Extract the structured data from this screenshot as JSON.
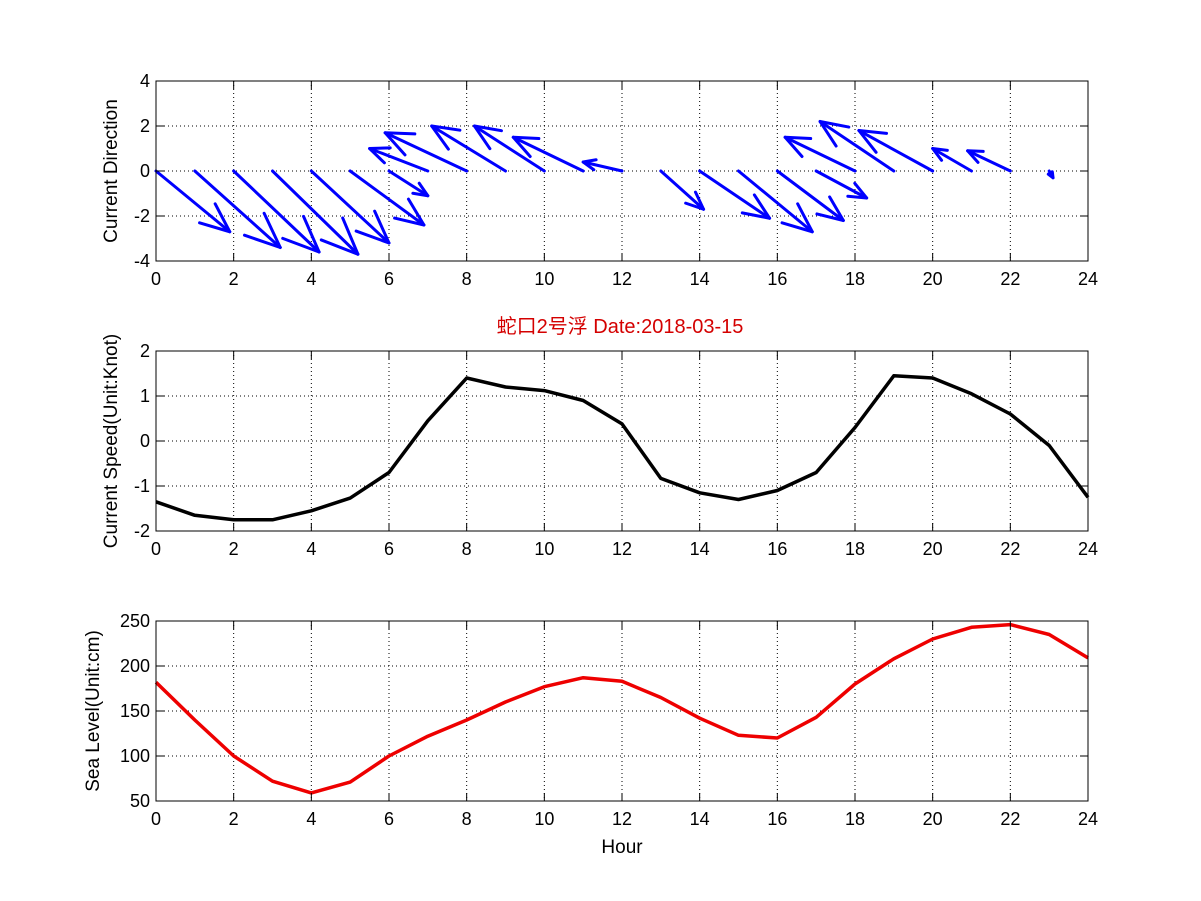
{
  "figure": {
    "title": "蛇口2号浮   Date:2018-03-15",
    "title_color": "#d40000"
  },
  "chart_data": [
    {
      "type": "quiver",
      "ylabel": "Current Direction",
      "xlabel": "",
      "xlim": [
        0,
        24
      ],
      "ylim": [
        -4,
        4
      ],
      "xticks": [
        0,
        2,
        4,
        6,
        8,
        10,
        12,
        14,
        16,
        18,
        20,
        22,
        24
      ],
      "yticks": [
        4,
        2,
        0,
        -2,
        -4
      ],
      "grid": true,
      "color": "#0000ff",
      "arrows": [
        {
          "x": 0,
          "u": 1.9,
          "v": -2.7
        },
        {
          "x": 1,
          "u": 2.2,
          "v": -3.4
        },
        {
          "x": 2,
          "u": 2.2,
          "v": -3.6
        },
        {
          "x": 3,
          "u": 2.2,
          "v": -3.7
        },
        {
          "x": 4,
          "u": 2.0,
          "v": -3.2
        },
        {
          "x": 5,
          "u": 1.9,
          "v": -2.4
        },
        {
          "x": 6,
          "u": 1.0,
          "v": -1.1
        },
        {
          "x": 7,
          "u": -1.5,
          "v": 1.0
        },
        {
          "x": 8,
          "u": -2.1,
          "v": 1.7
        },
        {
          "x": 9,
          "u": -1.9,
          "v": 2.0
        },
        {
          "x": 10,
          "u": -1.8,
          "v": 2.0
        },
        {
          "x": 11,
          "u": -1.8,
          "v": 1.5
        },
        {
          "x": 12,
          "u": -1.0,
          "v": 0.4
        },
        {
          "x": 13,
          "u": 1.1,
          "v": -1.7
        },
        {
          "x": 14,
          "u": 1.8,
          "v": -2.1
        },
        {
          "x": 15,
          "u": 1.9,
          "v": -2.7
        },
        {
          "x": 16,
          "u": 1.7,
          "v": -2.2
        },
        {
          "x": 17,
          "u": 1.3,
          "v": -1.2
        },
        {
          "x": 18,
          "u": -1.8,
          "v": 1.5
        },
        {
          "x": 19,
          "u": -1.9,
          "v": 2.2
        },
        {
          "x": 20,
          "u": -1.9,
          "v": 1.8
        },
        {
          "x": 21,
          "u": -1.0,
          "v": 1.0
        },
        {
          "x": 22,
          "u": -1.1,
          "v": 0.9
        },
        {
          "x": 23,
          "u": 0.1,
          "v": -0.3
        }
      ]
    },
    {
      "type": "line",
      "ylabel": "Current Speed(Unit:Knot)",
      "xlabel": "",
      "xlim": [
        0,
        24
      ],
      "ylim": [
        -2,
        2
      ],
      "xticks": [
        0,
        2,
        4,
        6,
        8,
        10,
        12,
        14,
        16,
        18,
        20,
        22,
        24
      ],
      "yticks": [
        2,
        1,
        0,
        -1,
        -2
      ],
      "grid": true,
      "color": "#000000",
      "x": [
        0,
        1,
        2,
        3,
        4,
        5,
        6,
        7,
        8,
        9,
        10,
        11,
        12,
        13,
        14,
        15,
        16,
        17,
        18,
        19,
        20,
        21,
        22,
        23,
        24
      ],
      "y": [
        -1.35,
        -1.65,
        -1.75,
        -1.75,
        -1.55,
        -1.27,
        -0.7,
        0.45,
        1.4,
        1.2,
        1.12,
        0.9,
        0.38,
        -0.83,
        -1.15,
        -1.3,
        -1.1,
        -0.7,
        0.3,
        1.45,
        1.4,
        1.05,
        0.6,
        -0.1,
        -1.25
      ]
    },
    {
      "type": "line",
      "ylabel": "Sea Level(Unit:cm)",
      "xlabel": "Hour",
      "xlim": [
        0,
        24
      ],
      "ylim": [
        50,
        250
      ],
      "xticks": [
        0,
        2,
        4,
        6,
        8,
        10,
        12,
        14,
        16,
        18,
        20,
        22,
        24
      ],
      "yticks": [
        250,
        200,
        150,
        100,
        50
      ],
      "grid": true,
      "color": "#ee0000",
      "x": [
        0,
        1,
        2,
        3,
        4,
        5,
        6,
        7,
        8,
        9,
        10,
        11,
        12,
        13,
        14,
        15,
        16,
        17,
        18,
        19,
        20,
        21,
        22,
        23,
        24
      ],
      "y": [
        182,
        140,
        100,
        72,
        59,
        71,
        100,
        122,
        140,
        160,
        177,
        187,
        183,
        165,
        142,
        123,
        120,
        143,
        180,
        208,
        230,
        243,
        246,
        235,
        209
      ]
    }
  ]
}
